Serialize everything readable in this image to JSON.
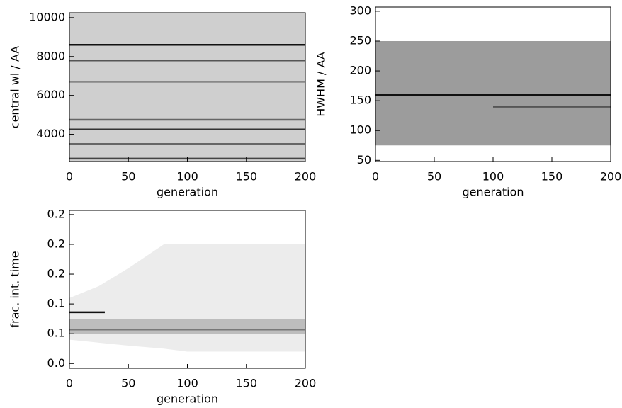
{
  "chart_data": [
    {
      "type": "density",
      "xlabel": "generation",
      "ylabel": "central wl / AA",
      "xlim": [
        0,
        200
      ],
      "ylim": [
        2600,
        10250
      ],
      "xticks": [
        0,
        50,
        100,
        150,
        200
      ],
      "yticks": [
        4000,
        6000,
        8000,
        10000
      ],
      "regions": [
        {
          "color": "#cfcfcf",
          "x": [
            0,
            200
          ],
          "upper": [
            10250,
            10250
          ],
          "lower": [
            2600,
            2600
          ]
        }
      ],
      "series": [
        {
          "color": "#111111",
          "x": [
            0,
            200
          ],
          "values": [
            8600,
            8600
          ]
        },
        {
          "color": "#333333",
          "x": [
            0,
            200
          ],
          "values": [
            4250,
            4250
          ]
        },
        {
          "color": "#444444",
          "x": [
            0,
            200
          ],
          "values": [
            2750,
            2750
          ]
        },
        {
          "color": "#666666",
          "x": [
            0,
            200
          ],
          "values": [
            4750,
            4750
          ]
        },
        {
          "color": "#555555",
          "x": [
            0,
            200
          ],
          "values": [
            7800,
            7800
          ]
        },
        {
          "color": "#666666",
          "x": [
            0,
            200
          ],
          "values": [
            3500,
            3500
          ]
        },
        {
          "color": "#888888",
          "x": [
            0,
            200
          ],
          "values": [
            6700,
            6700
          ]
        }
      ]
    },
    {
      "type": "density",
      "xlabel": "generation",
      "ylabel": "HWHM / AA",
      "xlim": [
        0,
        200
      ],
      "ylim": [
        48,
        307
      ],
      "xticks": [
        0,
        50,
        100,
        150,
        200
      ],
      "yticks": [
        50,
        100,
        150,
        200,
        250,
        300
      ],
      "regions": [
        {
          "color": "#9c9c9c",
          "x": [
            0,
            200
          ],
          "upper": [
            250,
            250
          ],
          "lower": [
            75,
            75
          ]
        }
      ],
      "series": [
        {
          "color": "#111111",
          "x": [
            0,
            200
          ],
          "values": [
            160,
            160
          ]
        },
        {
          "color": "#555555",
          "x": [
            100,
            200
          ],
          "values": [
            140,
            140
          ]
        }
      ]
    },
    {
      "type": "density",
      "xlabel": "generation",
      "ylabel": "frac. int. time",
      "xlim": [
        0,
        200
      ],
      "ylim": [
        -0.008,
        0.257
      ],
      "xticks": [
        0,
        50,
        100,
        150,
        200
      ],
      "yticks": [
        {
          "value": 0,
          "label": "0.0"
        },
        {
          "value": 0.05,
          "label": "0.1"
        },
        {
          "value": 0.1,
          "label": "0.1"
        },
        {
          "value": 0.15,
          "label": "0.2"
        },
        {
          "value": 0.2,
          "label": "0.2"
        },
        {
          "value": 0.25,
          "label": "0.2"
        }
      ],
      "regions": [
        {
          "color": "#ececec",
          "x": [
            0,
            25,
            50,
            80,
            100,
            150,
            200
          ],
          "upper": [
            0.11,
            0.13,
            0.16,
            0.2,
            0.2,
            0.2,
            0.2
          ],
          "lower": [
            0.04,
            0.035,
            0.03,
            0.025,
            0.02,
            0.02,
            0.02
          ]
        },
        {
          "color": "#bdbdbd",
          "x": [
            0,
            200
          ],
          "upper": [
            0.075,
            0.075
          ],
          "lower": [
            0.05,
            0.05
          ]
        }
      ],
      "series": [
        {
          "color": "#777777",
          "x": [
            0,
            200
          ],
          "values": [
            0.057,
            0.057
          ]
        },
        {
          "color": "#111111",
          "x": [
            0,
            30
          ],
          "values": [
            0.086,
            0.086
          ]
        }
      ]
    }
  ]
}
